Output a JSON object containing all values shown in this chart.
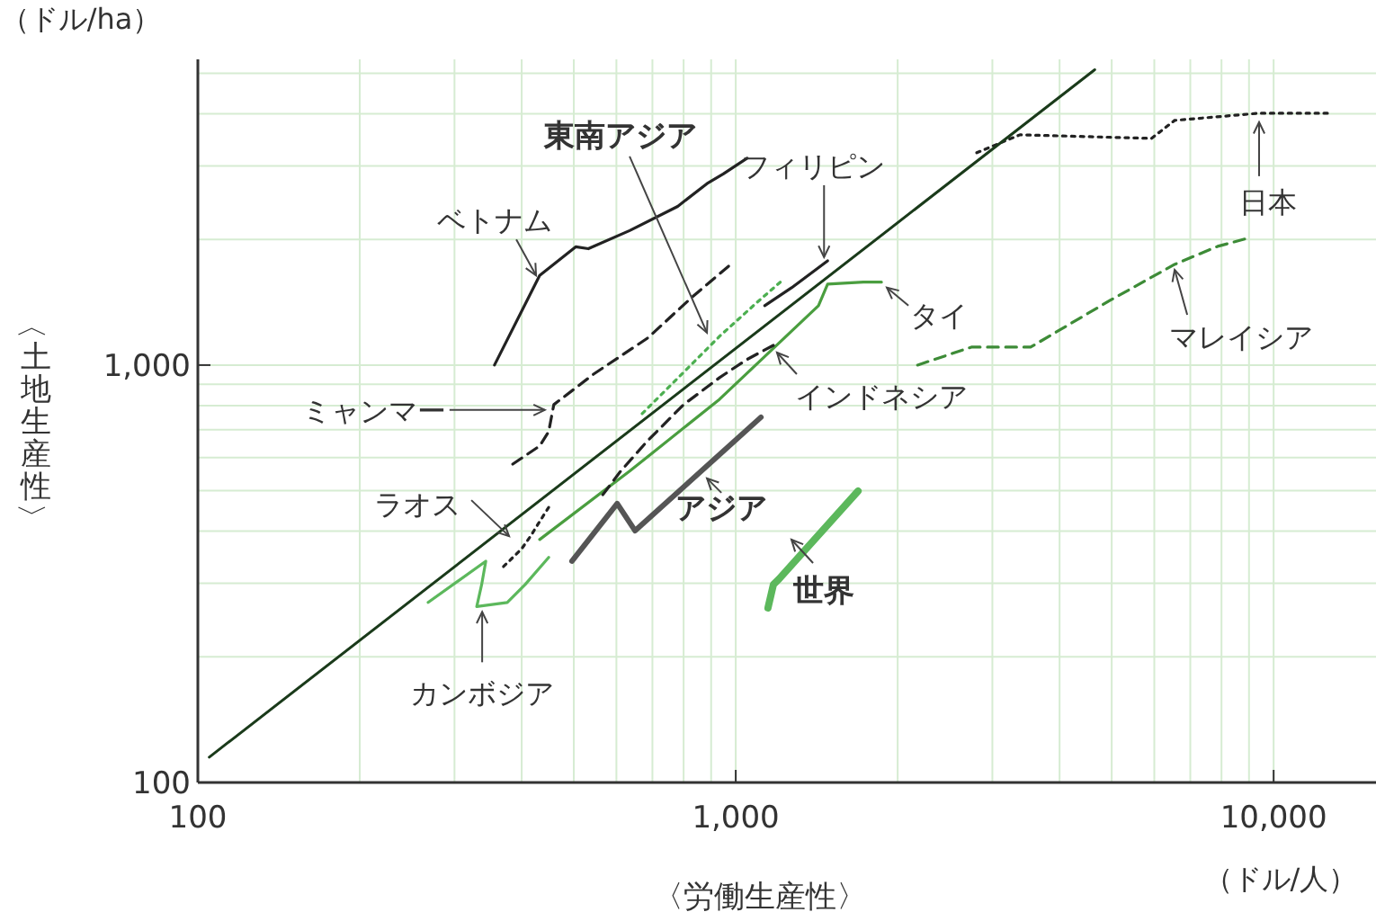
{
  "chart_data": {
    "type": "line",
    "xlabel": "〈労働生産性〉",
    "ylabel": "〈土地生産性〉",
    "annotations": [
      "（ドル/ha）",
      "（ドル/人）"
    ],
    "log": "xy",
    "grid": true,
    "marker": "none",
    "xlim": [
      100,
      15500
    ],
    "ylim": [
      100,
      5400
    ],
    "xticks": [
      100,
      {
        "value": 200,
        "label": null
      },
      {
        "value": 300,
        "label": null
      },
      {
        "value": 400,
        "label": null
      },
      {
        "value": 500,
        "label": null
      },
      {
        "value": 600,
        "label": null
      },
      {
        "value": 700,
        "label": null
      },
      {
        "value": 800,
        "label": null
      },
      {
        "value": 900,
        "label": null
      },
      {
        "value": 1000,
        "label": "1,000"
      },
      {
        "value": 2000,
        "label": null
      },
      {
        "value": 3000,
        "label": null
      },
      {
        "value": 4000,
        "label": null
      },
      {
        "value": 5000,
        "label": null
      },
      {
        "value": 6000,
        "label": null
      },
      {
        "value": 7000,
        "label": null
      },
      {
        "value": 8000,
        "label": null
      },
      {
        "value": 9000,
        "label": null
      },
      {
        "value": 10000,
        "label": "10,000"
      }
    ],
    "yticks": [
      100,
      {
        "value": 200,
        "label": null
      },
      {
        "value": 300,
        "label": null
      },
      {
        "value": 400,
        "label": null
      },
      {
        "value": 500,
        "label": null
      },
      {
        "value": 600,
        "label": null
      },
      {
        "value": 700,
        "label": null
      },
      {
        "value": 800,
        "label": null
      },
      {
        "value": 900,
        "label": null
      },
      {
        "value": 1000,
        "label": "1,000"
      },
      {
        "value": 2000,
        "label": null
      },
      {
        "value": 3000,
        "label": null
      },
      {
        "value": 4000,
        "label": null
      },
      {
        "value": 5000,
        "label": null
      }
    ],
    "series": [
      {
        "name": "ベトナム",
        "color": "#222222",
        "line_style": "solid",
        "x": [
          356,
          432,
          504,
          532,
          635,
          780,
          884,
          948,
          1050
        ],
        "values": [
          1000,
          1640,
          1920,
          1900,
          2100,
          2400,
          2720,
          2870,
          3130
        ]
      },
      {
        "name": "ミャンマー",
        "color": "#222222",
        "line_style": "dashed",
        "x": [
          385,
          432,
          449,
          459,
          544,
          686,
          831,
          970
        ],
        "values": [
          579,
          640,
          693,
          804,
          951,
          1161,
          1458,
          1726
        ]
      },
      {
        "name": "東南アジア",
        "color": "#4caf50",
        "line_style": "dotted",
        "x": [
          670,
          800,
          933,
          1100,
          1210
        ],
        "values": [
          765,
          961,
          1172,
          1420,
          1580
        ]
      },
      {
        "name": "フィリピン",
        "color": "#222222",
        "line_style": "solid",
        "x": [
          1132,
          1270,
          1482
        ],
        "values": [
          1388,
          1532,
          1778
        ]
      },
      {
        "name": "タイ",
        "color": "#4a9e3f",
        "line_style": "solid",
        "x": [
          432,
          635,
          933,
          1425,
          1482,
          1727,
          1866
        ],
        "values": [
          382,
          557,
          828,
          1388,
          1563,
          1580,
          1580
        ]
      },
      {
        "name": "インドネシア",
        "color": "#222222",
        "line_style": "dashed",
        "x": [
          566,
          611,
          686,
          800,
          933,
          1047,
          1175
        ],
        "values": [
          489,
          557,
          659,
          804,
          933,
          1030,
          1115
        ]
      },
      {
        "name": "ラオス",
        "color": "#222222",
        "line_style": "dotted",
        "x": [
          370,
          400,
          416,
          432,
          449
        ],
        "values": [
          329,
          363,
          390,
          422,
          456
        ]
      },
      {
        "name": "カンボジア",
        "color": "#5cb85c",
        "line_style": "solid",
        "x": [
          268,
          343,
          337,
          330,
          376,
          406,
          449
        ],
        "values": [
          270,
          339,
          298,
          264,
          270,
          298,
          346
        ]
      },
      {
        "name": "アジア",
        "color": "#555555",
        "line_style": "solid",
        "x": [
          496,
          602,
          650,
          1114
        ],
        "values": [
          339,
          466,
          401,
          750
        ]
      },
      {
        "name": "世界",
        "color": "#5cb85c",
        "line_style": "solid",
        "x": [
          1148,
          1175,
          1203,
          1688
        ],
        "values": [
          262,
          298,
          307,
          499
        ]
      },
      {
        "name": "マレイシア",
        "color": "#3d8b37",
        "line_style": "dashed",
        "x": [
          2178,
          2742,
          3533,
          4966,
          6546,
          7870,
          8836
        ],
        "values": [
          1000,
          1104,
          1104,
          1429,
          1743,
          1925,
          2004
        ]
      },
      {
        "name": "日本",
        "color": "#222222",
        "line_style": "dotted",
        "x": [
          2806,
          3376,
          5929,
          6546,
          9397,
          12590
        ],
        "values": [
          3226,
          3562,
          3492,
          3856,
          4012,
          4012
        ]
      },
      {
        "color": "#1a3a1a",
        "line_style": "solid",
        "x": [
          105,
          4650
        ],
        "values": [
          115,
          5100
        ]
      }
    ]
  }
}
